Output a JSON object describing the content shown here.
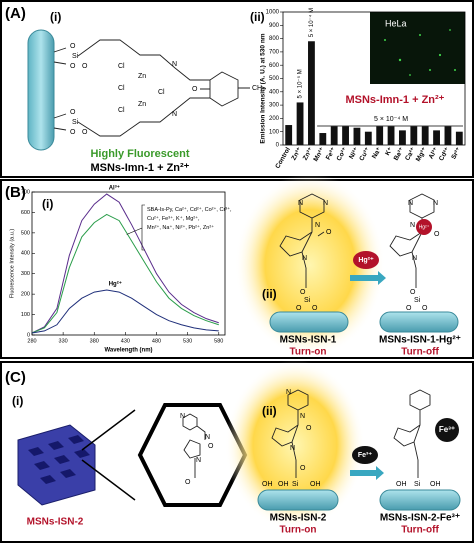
{
  "panel_a": {
    "label": "(A)",
    "sub_i": "(i)",
    "sub_ii": "(ii)",
    "atoms": [
      "O",
      "O",
      "Si",
      "O",
      "O",
      "O",
      "Si",
      "O",
      "Cl",
      "Cl",
      "Zn",
      "Zn",
      "Cl",
      "Cl",
      "N",
      "O",
      "N",
      "CH₃"
    ],
    "caption_1": "Highly Fluorescent",
    "caption_2": "MSNs-Imn-1 + Zn²⁺"
  },
  "panel_b": {
    "label": "(B)",
    "sub_i": "(i)",
    "sub_ii": "(ii)",
    "atoms": [
      "N",
      "N",
      "N",
      "O",
      "N",
      "O",
      "Si",
      "O",
      "O",
      "N",
      "N",
      "N",
      "O",
      "N",
      "O",
      "Si",
      "O",
      "O"
    ],
    "badge": "Hg²⁺",
    "ion": "Hg²⁺",
    "left_name": "MSNs-ISN-1",
    "left_state": "Turn-on",
    "right_name": "MSNs-ISN-1-Hg²⁺",
    "right_state": "Turn-off"
  },
  "panel_c": {
    "label": "(C)",
    "sub_i": "(i)",
    "sub_ii": "(ii)",
    "material": "MSNs-ISN-2",
    "atoms": [
      "N",
      "N",
      "N",
      "O",
      "O",
      "N",
      "N",
      "N",
      "O",
      "O",
      "OH",
      "OH",
      "Si",
      "OH",
      "OH",
      "Si",
      "OH"
    ],
    "left_name": "MSNs-ISN-2",
    "left_state": "Turn-on",
    "ion": "Fe³⁺",
    "badge": "Fe³⁺",
    "right_name": "MSNs-ISN-2-Fe³⁺",
    "right_state": "Turn-off"
  },
  "chart_data": [
    {
      "type": "bar",
      "ylabel": "Emission Intensity (A. U.) at 530 nm",
      "categories": [
        "Control",
        "Zn²⁺",
        "Zn²⁺",
        "Mn²⁺",
        "Fe²⁺",
        "Co²⁺",
        "Ni²⁺",
        "Cu²⁺",
        "Na⁺",
        "K⁺",
        "Ba²⁺",
        "Ca²⁺",
        "Mg²⁺",
        "Al³⁺",
        "Cd²⁺",
        "Sr²⁺"
      ],
      "values": [
        150,
        320,
        780,
        90,
        140,
        140,
        130,
        100,
        140,
        140,
        110,
        140,
        140,
        110,
        140,
        100
      ],
      "color": "#111111",
      "ylim": [
        0,
        1000
      ],
      "yticks": [
        0,
        100,
        200,
        300,
        400,
        500,
        600,
        700,
        800,
        900,
        1000
      ],
      "annotations": [
        "5 × 10⁻⁵ M",
        "5 × 10⁻⁴ M",
        "5 × 10⁻⁴ M"
      ],
      "inset": "HeLa",
      "overlay": "MSNs-Imn-1 + Zn²⁺"
    },
    {
      "type": "line",
      "xlabel": "Wavelength (nm)",
      "ylabel": "Fluorescence Intensity (a.u.)",
      "x": [
        280,
        300,
        320,
        340,
        360,
        380,
        400,
        420,
        440,
        460,
        480,
        500,
        520,
        540,
        560,
        580
      ],
      "series": [
        {
          "name": "Al³⁺",
          "color": "#5a2d8c",
          "values": [
            10,
            40,
            130,
            390,
            560,
            640,
            690,
            650,
            540,
            420,
            300,
            210,
            150,
            110,
            80,
            60
          ]
        },
        {
          "name": "SBA-Is-Py, Ca²⁺, Cd²⁺, Co²⁺, Cr³⁺, Cu²⁺, Fe³⁺, K⁺, Mg²⁺, Mn²⁺, Na⁺, Ni²⁺, Pb²⁺, Zn²⁺",
          "color": "#2a9d4a",
          "values": [
            10,
            35,
            110,
            330,
            480,
            550,
            590,
            560,
            460,
            360,
            260,
            180,
            130,
            95,
            70,
            50
          ]
        },
        {
          "name": "Hg²⁺",
          "color": "#1f2f7a",
          "values": [
            10,
            20,
            50,
            130,
            180,
            210,
            220,
            210,
            180,
            140,
            100,
            70,
            50,
            35,
            25,
            20
          ]
        }
      ],
      "xlim": [
        280,
        590
      ],
      "xticks": [
        280,
        330,
        380,
        430,
        480,
        530,
        580
      ],
      "ylim": [
        0,
        700
      ],
      "yticks": [
        0,
        100,
        200,
        300,
        400,
        500,
        600,
        700
      ]
    }
  ]
}
